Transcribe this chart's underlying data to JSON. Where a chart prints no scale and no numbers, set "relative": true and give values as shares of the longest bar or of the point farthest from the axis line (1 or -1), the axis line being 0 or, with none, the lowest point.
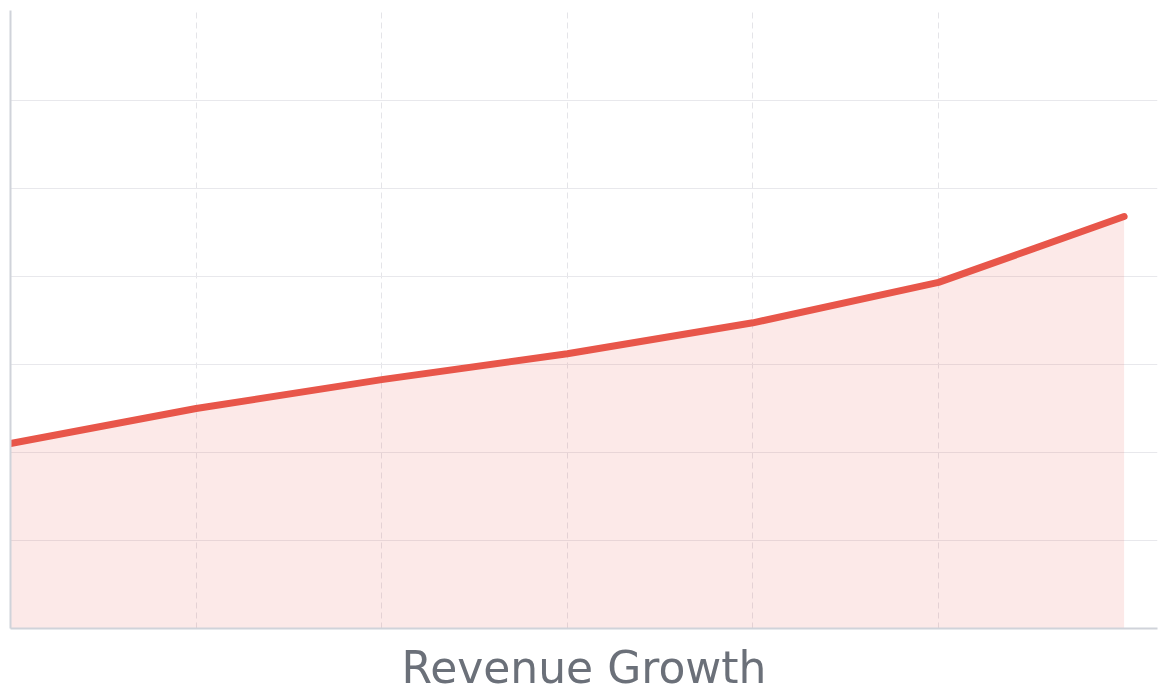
{
  "chart_data": {
    "type": "area",
    "title": "Revenue Growth",
    "relative": true,
    "categories": [
      null,
      null,
      null,
      null,
      null,
      null,
      null
    ],
    "series": [
      {
        "color": "#e8564a",
        "values": [
          0.449,
          0.534,
          0.604,
          0.667,
          0.742,
          0.84,
          1.0
        ]
      }
    ],
    "grid": true
  }
}
